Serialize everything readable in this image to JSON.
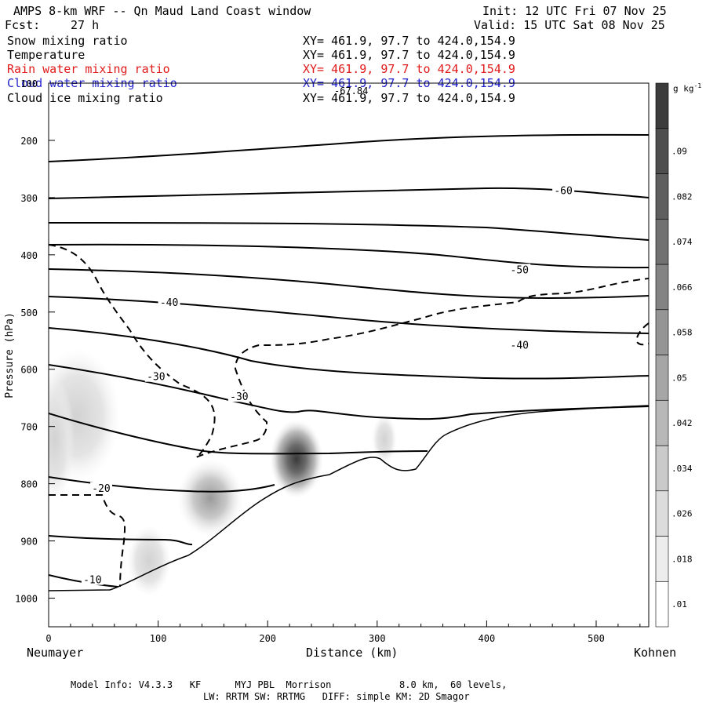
{
  "header": {
    "title": "AMPS 8-km WRF -- Qn Maud Land Coast window",
    "fcst_label": "Fcst:",
    "fcst_value": "27 h",
    "init": "Init: 12 UTC Fri 07 Nov 25",
    "valid": "Valid: 15 UTC Sat 08 Nov 25"
  },
  "fields": [
    {
      "name": "Snow mixing ratio",
      "range": "XY= 461.9, 97.7 to 424.0,154.9",
      "color": "#000000"
    },
    {
      "name": "Temperature",
      "range": "XY= 461.9, 97.7 to 424.0,154.9",
      "color": "#000000"
    },
    {
      "name": "Rain water mixing ratio",
      "range": "XY= 461.9, 97.7 to 424.0,154.9",
      "color": "#e01b1b"
    },
    {
      "name": "Cloud water mixing ratio",
      "range": "XY= 461.9, 97.7 to 424.0,154.9",
      "color": "#2222cc"
    },
    {
      "name": "Cloud ice mixing ratio",
      "range": "XY= 461.9, 97.7 to 424.0,154.9",
      "color": "#000000"
    }
  ],
  "overlay_label": "-67.84",
  "footer": {
    "line1": "Model Info: V4.3.3   KF      MYJ PBL  Morrison            8.0 km,  60 levels,",
    "line2": "LW: RRTM SW: RRTMG   DIFF: simple KM: 2D Smagor"
  },
  "chart_data": {
    "type": "contour",
    "xlabel": "Distance (km)",
    "ylabel": "Pressure (hPa)",
    "x_start_label": "Neumayer",
    "x_end_label": "Kohnen",
    "xlim": [
      0,
      548
    ],
    "ylim": [
      1050,
      100
    ],
    "x_ticks": [
      0,
      100,
      200,
      300,
      400,
      500
    ],
    "y_ticks": [
      100,
      200,
      300,
      400,
      500,
      600,
      700,
      800,
      900,
      1000
    ],
    "colorbar_unit": "g kg",
    "colorbar_unit_sup": "-1",
    "colorbar_ticks": [
      ".01",
      ".018",
      ".026",
      ".034",
      ".042",
      ".05",
      ".058",
      ".066",
      ".074",
      ".082",
      ".09"
    ],
    "temperature_labels": [
      {
        "text": "-60",
        "x": 470,
        "p": 290
      },
      {
        "text": "-50",
        "x": 430,
        "p": 428
      },
      {
        "text": "-40",
        "x": 110,
        "p": 485
      },
      {
        "text": "-40",
        "x": 430,
        "p": 560
      },
      {
        "text": "-30",
        "x": 98,
        "p": 615
      },
      {
        "text": "-30",
        "x": 174,
        "p": 650
      },
      {
        "text": "-20",
        "x": 48,
        "p": 810
      },
      {
        "text": "-10",
        "x": 40,
        "p": 970
      }
    ]
  }
}
